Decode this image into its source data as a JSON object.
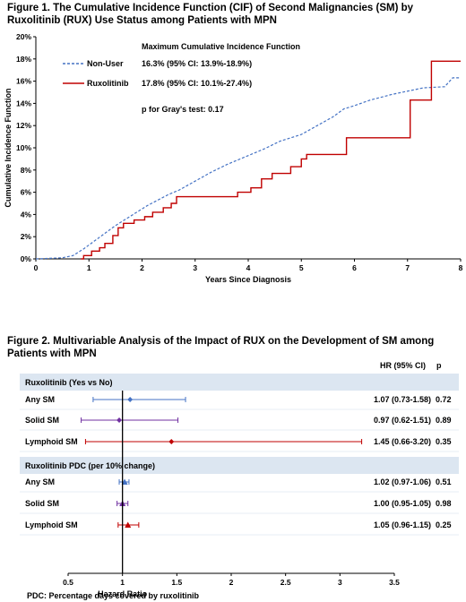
{
  "figure1": {
    "title_line1": "Figure 1. The Cumulative Incidence Function (CIF) of Second Malignancies (SM) by",
    "title_line2": "Ruxolitinib (RUX) Use Status among Patients with MPN",
    "legend_header": "Maximum Cumulative Incidence Function",
    "p_text": "p for Gray's test: 0.17"
  },
  "figure2": {
    "title_line1": "Figure 2. Multivariable Analysis of the Impact of RUX on the Development of SM among",
    "title_line2": "Patients with MPN",
    "col_hr": "HR (95% CI)",
    "col_p": "p",
    "footnote": "PDC: Percentage days covered by ruxolitinib"
  },
  "colors": {
    "nonuser": "#4472c4",
    "rux": "#c00000",
    "band": "#dce6f1",
    "purple": "#7030a0"
  },
  "chart_data": [
    {
      "type": "line",
      "title": "Figure 1. The Cumulative Incidence Function (CIF) of Second Malignancies (SM) by Ruxolitinib (RUX) Use Status among Patients with MPN",
      "xlabel": "Years Since Diagnosis",
      "ylabel": "Cumulative Incidence Function",
      "xlim": [
        0,
        8
      ],
      "ylim": [
        0,
        20
      ],
      "xticks": [
        "0",
        "1",
        "2",
        "3",
        "4",
        "5",
        "6",
        "7",
        "8"
      ],
      "yticks": [
        "0%",
        "2%",
        "4%",
        "6%",
        "8%",
        "10%",
        "12%",
        "14%",
        "16%",
        "18%",
        "20%"
      ],
      "legend_position": "top-left",
      "series": [
        {
          "name": "Non-User",
          "summary": "16.3%  (95% CI: 13.9%-18.9%)",
          "style": "dashed",
          "color": "#4472c4",
          "points": [
            [
              0,
              0
            ],
            [
              0.5,
              0.1
            ],
            [
              0.7,
              0.3
            ],
            [
              0.9,
              0.9
            ],
            [
              1.1,
              1.6
            ],
            [
              1.3,
              2.3
            ],
            [
              1.5,
              3.0
            ],
            [
              1.7,
              3.6
            ],
            [
              1.9,
              4.2
            ],
            [
              2.1,
              4.8
            ],
            [
              2.3,
              5.3
            ],
            [
              2.5,
              5.8
            ],
            [
              2.7,
              6.2
            ],
            [
              3.0,
              7.0
            ],
            [
              3.3,
              7.8
            ],
            [
              3.6,
              8.5
            ],
            [
              4.0,
              9.3
            ],
            [
              4.3,
              9.9
            ],
            [
              4.6,
              10.6
            ],
            [
              5.0,
              11.2
            ],
            [
              5.3,
              12.0
            ],
            [
              5.6,
              12.8
            ],
            [
              5.8,
              13.5
            ],
            [
              6.0,
              13.8
            ],
            [
              6.3,
              14.3
            ],
            [
              6.7,
              14.8
            ],
            [
              7.0,
              15.1
            ],
            [
              7.3,
              15.4
            ],
            [
              7.7,
              15.5
            ],
            [
              7.85,
              16.3
            ],
            [
              8.0,
              16.3
            ]
          ]
        },
        {
          "name": "Ruxolitinib",
          "summary": "17.8%  (95% CI: 10.1%-27.4%)",
          "style": "step",
          "color": "#c00000",
          "points": [
            [
              0.85,
              0
            ],
            [
              0.9,
              0.3
            ],
            [
              1.05,
              0.7
            ],
            [
              1.2,
              1.0
            ],
            [
              1.3,
              1.4
            ],
            [
              1.45,
              2.1
            ],
            [
              1.55,
              2.8
            ],
            [
              1.65,
              3.2
            ],
            [
              1.85,
              3.5
            ],
            [
              2.05,
              3.8
            ],
            [
              2.2,
              4.2
            ],
            [
              2.4,
              4.6
            ],
            [
              2.55,
              5.0
            ],
            [
              2.65,
              5.6
            ],
            [
              3.15,
              5.6
            ],
            [
              3.6,
              5.6
            ],
            [
              3.8,
              6.0
            ],
            [
              4.05,
              6.4
            ],
            [
              4.25,
              7.2
            ],
            [
              4.45,
              7.7
            ],
            [
              4.65,
              7.7
            ],
            [
              4.8,
              8.3
            ],
            [
              5.0,
              9.0
            ],
            [
              5.1,
              9.4
            ],
            [
              5.6,
              9.4
            ],
            [
              5.85,
              10.9
            ],
            [
              6.9,
              10.9
            ],
            [
              7.05,
              14.3
            ],
            [
              7.4,
              14.3
            ],
            [
              7.45,
              17.8
            ],
            [
              8.0,
              17.8
            ]
          ]
        }
      ]
    },
    {
      "type": "scatter",
      "title": "Figure 2. Multivariable Analysis of the Impact of RUX on the Development of SM among Patients with MPN",
      "xlabel": "Hazard Ratio",
      "xlim": [
        0.5,
        3.5
      ],
      "xticks": [
        "0.5",
        "1",
        "1.5",
        "2",
        "2.5",
        "3",
        "3.5"
      ],
      "reference_line": 1,
      "groups": [
        {
          "label": "Ruxolitinib (Yes vs No)",
          "rows": [
            {
              "name": "Any SM",
              "hr": 1.07,
              "lo": 0.73,
              "hi": 1.58,
              "text": "1.07 (0.73-1.58)",
              "p": "0.72",
              "color": "#4472c4",
              "marker": "diamond"
            },
            {
              "name": "Solid SM",
              "hr": 0.97,
              "lo": 0.62,
              "hi": 1.51,
              "text": "0.97 (0.62-1.51)",
              "p": "0.89",
              "color": "#7030a0",
              "marker": "diamond"
            },
            {
              "name": "Lymphoid SM",
              "hr": 1.45,
              "lo": 0.66,
              "hi": 3.2,
              "text": "1.45 (0.66-3.20)",
              "p": "0.35",
              "color": "#c00000",
              "marker": "diamond"
            }
          ]
        },
        {
          "label": "Ruxolitinib PDC (per 10% change)",
          "rows": [
            {
              "name": "Any SM",
              "hr": 1.02,
              "lo": 0.97,
              "hi": 1.06,
              "text": "1.02 (0.97-1.06)",
              "p": "0.51",
              "color": "#4472c4",
              "marker": "triangle"
            },
            {
              "name": "Solid SM",
              "hr": 1.0,
              "lo": 0.95,
              "hi": 1.05,
              "text": "1.00 (0.95-1.05)",
              "p": "0.98",
              "color": "#7030a0",
              "marker": "triangle"
            },
            {
              "name": "Lymphoid SM",
              "hr": 1.05,
              "lo": 0.96,
              "hi": 1.15,
              "text": "1.05 (0.96-1.15)",
              "p": "0.25",
              "color": "#c00000",
              "marker": "triangle"
            }
          ]
        }
      ]
    }
  ]
}
